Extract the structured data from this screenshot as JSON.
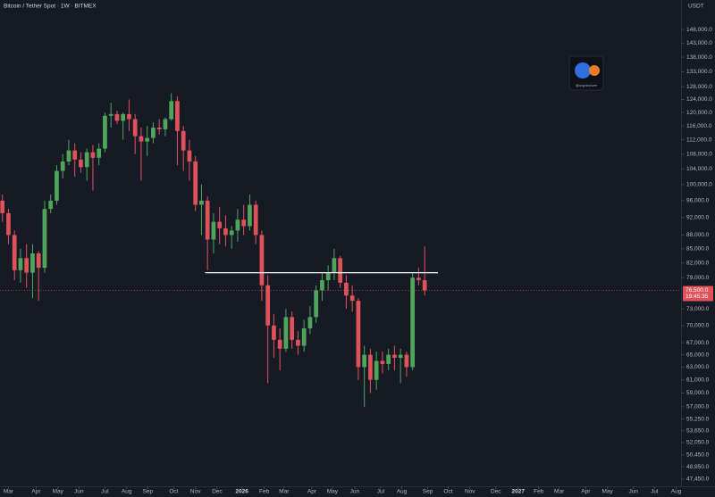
{
  "chart_data": {
    "type": "candlestick",
    "title": "Bitcoin / Tether Spot · 1W · BITMEX",
    "currency": "USDT",
    "watermark": "@cryptorover",
    "log_scale": true,
    "up_color": "#4fa65a",
    "down_color": "#e0525a",
    "ylim": [
      159500,
      46600
    ],
    "xlim": [
      -0.4,
      112.5
    ],
    "yticks": [
      {
        "value": 148000,
        "label": "148,000.0"
      },
      {
        "value": 143000,
        "label": "143,000.0"
      },
      {
        "value": 138000,
        "label": "138,000.0"
      },
      {
        "value": 133000,
        "label": "133,000.0"
      },
      {
        "value": 128000,
        "label": "128,000.0"
      },
      {
        "value": 124000,
        "label": "124,000.0"
      },
      {
        "value": 120000,
        "label": "120,000.0"
      },
      {
        "value": 116000,
        "label": "116,000.0"
      },
      {
        "value": 112000,
        "label": "112,000.0"
      },
      {
        "value": 108000,
        "label": "108,000.0"
      },
      {
        "value": 104000,
        "label": "104,000.0"
      },
      {
        "value": 100000,
        "label": "100,000.0"
      },
      {
        "value": 96000,
        "label": "96,000.0"
      },
      {
        "value": 92000,
        "label": "92,000.0"
      },
      {
        "value": 88000,
        "label": "88,000.0"
      },
      {
        "value": 85000,
        "label": "85,000.0"
      },
      {
        "value": 82000,
        "label": "82,000.0"
      },
      {
        "value": 79000,
        "label": "79,000.0"
      },
      {
        "value": 73000,
        "label": "73,000.0"
      },
      {
        "value": 70000,
        "label": "70,000.0"
      },
      {
        "value": 67000,
        "label": "67,000.0"
      },
      {
        "value": 65000,
        "label": "65,000.0"
      },
      {
        "value": 63000,
        "label": "63,000.0"
      },
      {
        "value": 61000,
        "label": "61,000.0"
      },
      {
        "value": 59000,
        "label": "59,000.0"
      },
      {
        "value": 57000,
        "label": "57,000.0"
      },
      {
        "value": 55250,
        "label": "55,250.0"
      },
      {
        "value": 53650,
        "label": "53,650.0"
      },
      {
        "value": 52050,
        "label": "52,050.0"
      },
      {
        "value": 50450,
        "label": "50,450.0"
      },
      {
        "value": 48950,
        "label": "48,950.0"
      },
      {
        "value": 47450,
        "label": "47,450.0"
      }
    ],
    "xticks": [
      {
        "value": 1.0,
        "label": "Mar"
      },
      {
        "value": 5.6,
        "label": "Apr"
      },
      {
        "value": 9.2,
        "label": "May"
      },
      {
        "value": 12.7,
        "label": "Jun"
      },
      {
        "value": 17.0,
        "label": "Jul"
      },
      {
        "value": 20.6,
        "label": "Aug"
      },
      {
        "value": 24.1,
        "label": "Sep"
      },
      {
        "value": 28.4,
        "label": "Oct"
      },
      {
        "value": 32.0,
        "label": "Nov"
      },
      {
        "value": 35.6,
        "label": "Dec"
      },
      {
        "value": 39.7,
        "label": "2026"
      },
      {
        "value": 43.4,
        "label": "Feb"
      },
      {
        "value": 46.7,
        "label": "Mar"
      },
      {
        "value": 51.3,
        "label": "Apr"
      },
      {
        "value": 54.7,
        "label": "May"
      },
      {
        "value": 58.4,
        "label": "Jun"
      },
      {
        "value": 62.7,
        "label": "Jul"
      },
      {
        "value": 66.2,
        "label": "Aug"
      },
      {
        "value": 70.5,
        "label": "Sep"
      },
      {
        "value": 73.9,
        "label": "Oct"
      },
      {
        "value": 77.5,
        "label": "Nov"
      },
      {
        "value": 81.8,
        "label": "Dec"
      },
      {
        "value": 85.5,
        "label": "2027"
      },
      {
        "value": 88.9,
        "label": "Feb"
      },
      {
        "value": 92.3,
        "label": "Mar"
      },
      {
        "value": 96.7,
        "label": "Apr"
      },
      {
        "value": 100.3,
        "label": "May"
      },
      {
        "value": 104.6,
        "label": "Jun"
      },
      {
        "value": 108.1,
        "label": "Jul"
      },
      {
        "value": 111.7,
        "label": "Aug"
      }
    ],
    "open": [
      96000,
      93000,
      88000,
      80500,
      83000,
      80000,
      84000,
      81000,
      94000,
      96000,
      103500,
      106000,
      109000,
      106500,
      104500,
      108500,
      107000,
      109500,
      119000,
      119500,
      117500,
      119500,
      118000,
      113000,
      111500,
      112500,
      115500,
      115000,
      118000,
      123500,
      114500,
      109000,
      106000,
      95000,
      96000,
      87000,
      91000,
      89500,
      88000,
      89000,
      91500,
      90000,
      95000,
      88000,
      77500,
      70000,
      67500,
      66000,
      71500,
      67500,
      66500,
      69500,
      71500,
      76500,
      78500,
      80000,
      83000,
      78000,
      75500,
      74500,
      63000,
      65000,
      61000,
      64000,
      63500,
      65000,
      64500,
      65000,
      63000,
      79000,
      78500
    ],
    "high": [
      97500,
      94000,
      89000,
      85000,
      86000,
      86000,
      84500,
      96000,
      97500,
      105000,
      108000,
      112000,
      111000,
      108500,
      109500,
      110500,
      111000,
      120000,
      123000,
      120500,
      120000,
      124000,
      119500,
      115500,
      116000,
      117000,
      118000,
      118500,
      126000,
      125000,
      116000,
      112000,
      107500,
      100000,
      97000,
      93000,
      94500,
      92500,
      90000,
      94000,
      95000,
      97500,
      96000,
      89000,
      79500,
      72000,
      69500,
      73000,
      72500,
      69000,
      71000,
      73500,
      77500,
      80000,
      81500,
      85000,
      83500,
      79500,
      77500,
      75000,
      66500,
      66000,
      65500,
      65500,
      66000,
      66500,
      66000,
      65500,
      80000,
      81000,
      85500
    ],
    "low": [
      91000,
      86000,
      78500,
      78000,
      77000,
      75000,
      74500,
      80000,
      93000,
      95000,
      101500,
      105000,
      102000,
      103000,
      101000,
      98500,
      105000,
      108500,
      115500,
      116500,
      112000,
      114500,
      108000,
      101000,
      107500,
      111000,
      113500,
      113000,
      117500,
      105000,
      103500,
      101000,
      93500,
      88000,
      80500,
      84000,
      86000,
      85500,
      85000,
      86500,
      88000,
      89000,
      86000,
      74500,
      60500,
      64500,
      62500,
      65500,
      66000,
      65000,
      65500,
      68500,
      70500,
      74500,
      76500,
      78500,
      77000,
      73000,
      72500,
      61000,
      57000,
      59000,
      59500,
      62000,
      62500,
      62500,
      60500,
      61500,
      62500,
      77500,
      75500
    ],
    "close": [
      93000,
      88000,
      80500,
      83000,
      80000,
      84000,
      81000,
      94000,
      96000,
      103500,
      106000,
      109000,
      106500,
      104500,
      108500,
      107000,
      109500,
      119000,
      119500,
      117500,
      119500,
      118000,
      113000,
      111500,
      112500,
      115500,
      115000,
      118000,
      123500,
      114500,
      109000,
      106000,
      95000,
      96000,
      87000,
      91000,
      89500,
      88000,
      89000,
      91500,
      90000,
      95000,
      88000,
      77500,
      70000,
      67500,
      66000,
      71500,
      67500,
      66500,
      69500,
      71500,
      76500,
      78500,
      80000,
      83000,
      78000,
      75500,
      74500,
      63000,
      65000,
      61000,
      64000,
      63500,
      65000,
      64500,
      65000,
      63000,
      79000,
      78500,
      76500
    ],
    "level": {
      "value": 80000,
      "from": 33.6,
      "to": 72.2
    },
    "last_price": {
      "value": 76500,
      "label": "76,500.0"
    },
    "countdown": "19:45:35"
  }
}
